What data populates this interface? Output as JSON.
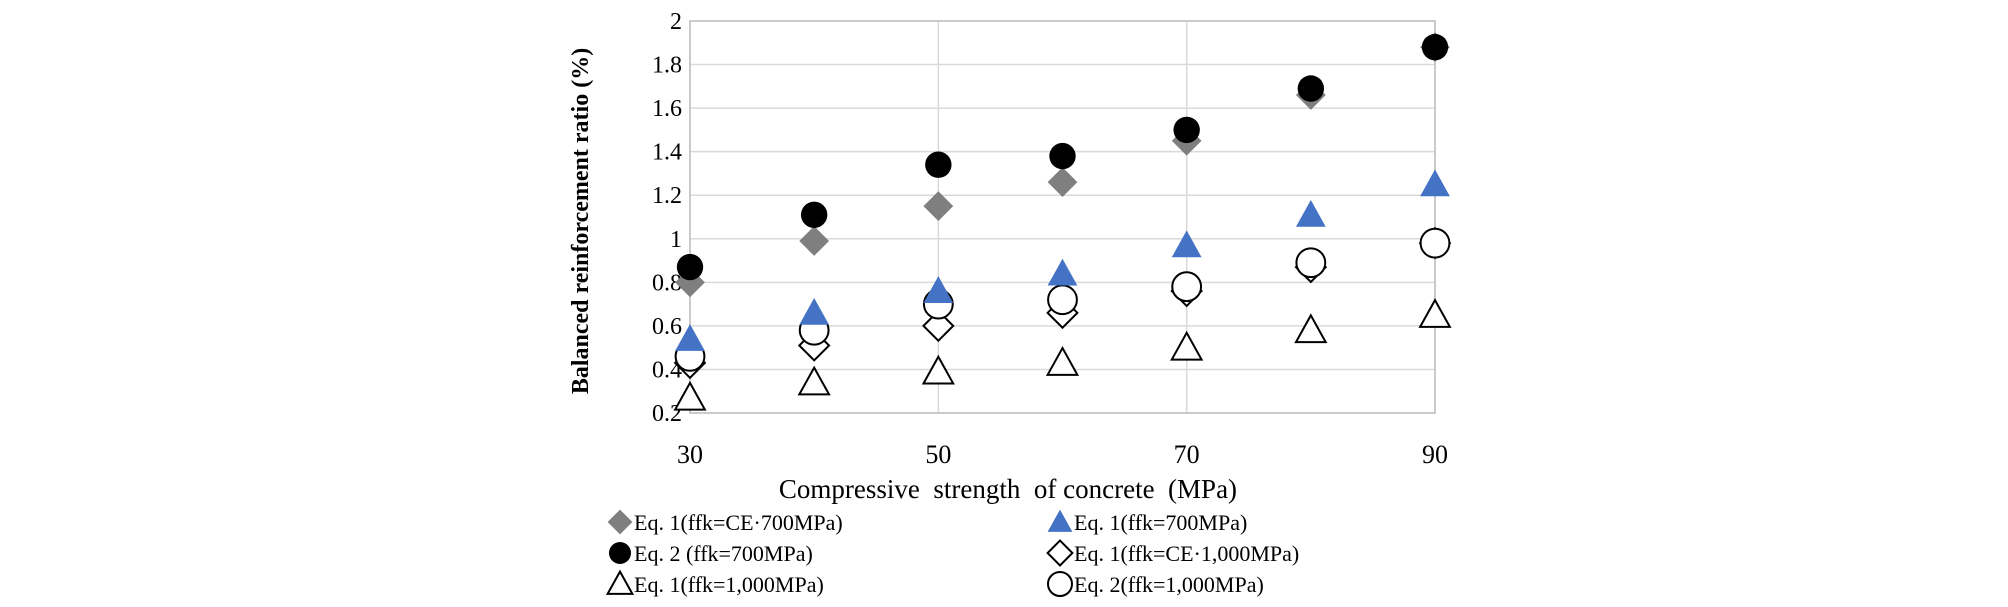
{
  "chart_data": {
    "type": "scatter",
    "xlabel": "Compressive  strength  of concrete  (MPa)",
    "ylabel": "Balanced reinforcement ratio (%)",
    "xlim": [
      30,
      90
    ],
    "ylim": [
      0.2,
      2
    ],
    "xticks": [
      "30",
      "50",
      "70",
      "90"
    ],
    "yticks": [
      "0.2",
      "0.4",
      "0.6",
      "0.8",
      "1",
      "1.2",
      "1.4",
      "1.6",
      "1.8",
      "2"
    ],
    "grid": "vertical and horizontal major gridlines",
    "legend_placement": "bottom",
    "x": [
      30,
      40,
      50,
      60,
      70,
      80,
      90
    ],
    "series": [
      {
        "name": "Eq. 1(ffk=CE·700MPa)",
        "marker": "diamond-filled",
        "color": "#7f7f7f",
        "values": [
          0.8,
          0.99,
          1.15,
          1.26,
          1.45,
          1.66,
          1.88
        ]
      },
      {
        "name": "Eq. 1(ffk=700MPa)",
        "marker": "triangle-filled",
        "color": "#4472c4",
        "values": [
          0.54,
          0.66,
          0.76,
          0.84,
          0.97,
          1.11,
          1.25
        ]
      },
      {
        "name": "Eq. 2 (ffk=700MPa)",
        "marker": "circle-filled",
        "color": "#000000",
        "values": [
          0.87,
          1.11,
          1.34,
          1.38,
          1.5,
          1.69,
          1.88
        ]
      },
      {
        "name": "Eq. 1(ffk=CE·1,000MPa)",
        "marker": "diamond-open",
        "color": "#000000",
        "values": [
          0.43,
          0.51,
          0.6,
          0.66,
          0.76,
          0.87,
          0.98
        ]
      },
      {
        "name": "Eq. 1(ffk=1,000MPa)",
        "marker": "triangle-open",
        "color": "#000000",
        "values": [
          0.27,
          0.34,
          0.39,
          0.43,
          0.5,
          0.58,
          0.65
        ]
      },
      {
        "name": "Eq. 2(ffk=1,000MPa)",
        "marker": "circle-open",
        "color": "#000000",
        "values": [
          0.46,
          0.58,
          0.7,
          0.72,
          0.78,
          0.89,
          0.98
        ]
      }
    ]
  }
}
